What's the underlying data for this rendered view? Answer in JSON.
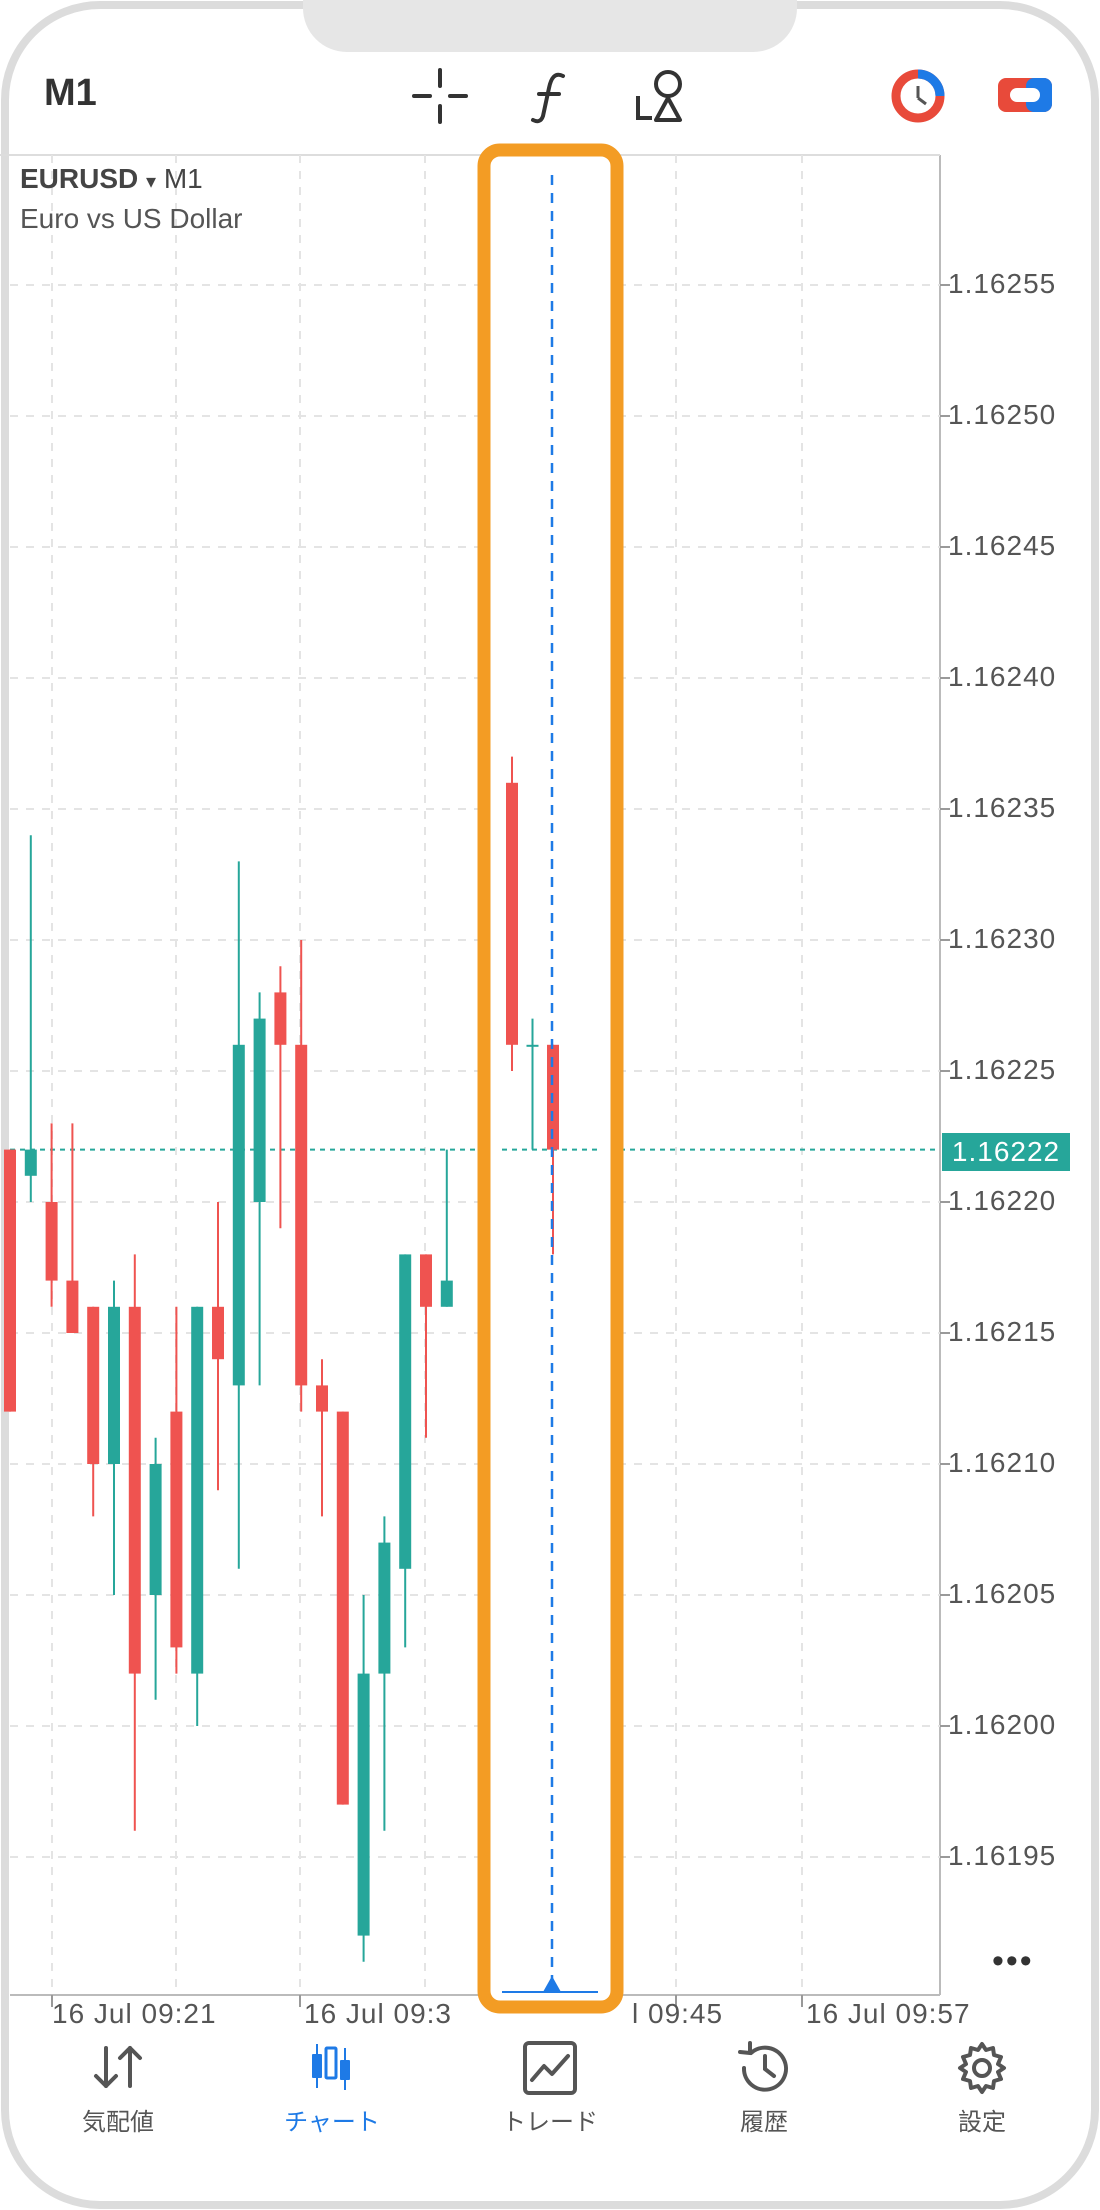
{
  "header": {
    "timeframe": "M1"
  },
  "chart_info": {
    "symbol": "EURUSD",
    "arrow": "▾",
    "period": "M1",
    "description": "Euro vs US Dollar"
  },
  "price_axis": [
    "1.16255",
    "1.16250",
    "1.16245",
    "1.16240",
    "1.16235",
    "1.16230",
    "1.16225",
    "1.16220",
    "1.16215",
    "1.16210",
    "1.16205",
    "1.16200",
    "1.16195"
  ],
  "current_price": "1.16222",
  "time_axis": [
    "16 Jul 09:21",
    "16 Jul 09:3",
    "l 09:45",
    "16 Jul 09:57"
  ],
  "more_label": "•••",
  "colors": {
    "bull": "#26a69a",
    "bear": "#ef5350",
    "highlight": "#f39c24",
    "accent": "#1e7ae6"
  },
  "icons": [
    "crosshair-icon",
    "function-icon",
    "objects-icon",
    "one-click-trading-icon",
    "account-icon"
  ],
  "tabs": [
    {
      "label": "気配値",
      "icon": "quotes-icon",
      "active": false
    },
    {
      "label": "チャート",
      "icon": "chart-icon",
      "active": true
    },
    {
      "label": "トレード",
      "icon": "trade-icon",
      "active": false
    },
    {
      "label": "履歴",
      "icon": "history-icon",
      "active": false
    },
    {
      "label": "設定",
      "icon": "settings-icon",
      "active": false
    }
  ],
  "chart_data": {
    "type": "candlestick",
    "candles_left": [
      {
        "o": 1.16222,
        "h": 1.16222,
        "l": 1.16212,
        "c": 1.16212
      },
      {
        "o": 1.16221,
        "h": 1.16234,
        "l": 1.1622,
        "c": 1.16222
      },
      {
        "o": 1.1622,
        "h": 1.16223,
        "l": 1.16216,
        "c": 1.16217
      },
      {
        "o": 1.16217,
        "h": 1.16223,
        "l": 1.16215,
        "c": 1.16215
      },
      {
        "o": 1.16216,
        "h": 1.16216,
        "l": 1.16208,
        "c": 1.1621
      },
      {
        "o": 1.1621,
        "h": 1.16217,
        "l": 1.16205,
        "c": 1.16216
      },
      {
        "o": 1.16216,
        "h": 1.16218,
        "l": 1.16196,
        "c": 1.16202
      },
      {
        "o": 1.16205,
        "h": 1.16211,
        "l": 1.16201,
        "c": 1.1621
      },
      {
        "o": 1.16212,
        "h": 1.16216,
        "l": 1.16202,
        "c": 1.16203
      },
      {
        "o": 1.16202,
        "h": 1.16216,
        "l": 1.162,
        "c": 1.16216
      },
      {
        "o": 1.16216,
        "h": 1.1622,
        "l": 1.16209,
        "c": 1.16214
      },
      {
        "o": 1.16213,
        "h": 1.16233,
        "l": 1.16206,
        "c": 1.16226
      },
      {
        "o": 1.1622,
        "h": 1.16228,
        "l": 1.16213,
        "c": 1.16227
      },
      {
        "o": 1.16228,
        "h": 1.16229,
        "l": 1.16219,
        "c": 1.16226
      },
      {
        "o": 1.16226,
        "h": 1.1623,
        "l": 1.16212,
        "c": 1.16213
      },
      {
        "o": 1.16213,
        "h": 1.16214,
        "l": 1.16208,
        "c": 1.16212
      },
      {
        "o": 1.16212,
        "h": 1.16212,
        "l": 1.16197,
        "c": 1.16197
      },
      {
        "o": 1.16192,
        "h": 1.16205,
        "l": 1.16191,
        "c": 1.16202
      },
      {
        "o": 1.16202,
        "h": 1.16208,
        "l": 1.16196,
        "c": 1.16207
      },
      {
        "o": 1.16206,
        "h": 1.16218,
        "l": 1.16203,
        "c": 1.16218
      },
      {
        "o": 1.16218,
        "h": 1.16218,
        "l": 1.16211,
        "c": 1.16216
      },
      {
        "o": 1.16216,
        "h": 1.16222,
        "l": 1.16216,
        "c": 1.16217
      }
    ],
    "candles_right": [
      {
        "o": 1.16236,
        "h": 1.16237,
        "l": 1.16225,
        "c": 1.16226
      },
      {
        "o": 1.16226,
        "h": 1.16227,
        "l": 1.16222,
        "c": 1.16226
      },
      {
        "o": 1.16226,
        "h": 1.16226,
        "l": 1.16218,
        "c": 1.16222
      }
    ],
    "y_range": [
      1.1619,
      1.1626
    ],
    "grid": true
  }
}
